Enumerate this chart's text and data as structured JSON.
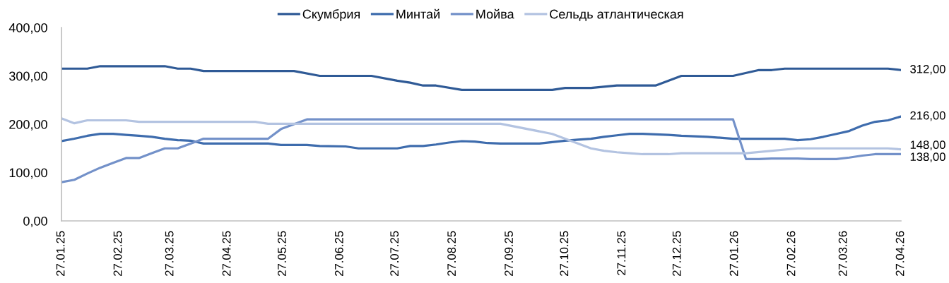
{
  "chart_data": {
    "type": "line",
    "xlim": [
      "2025-01-27",
      "2026-04-27"
    ],
    "xticks": [
      {
        "value": "2025-01-27",
        "label": "27.01.25"
      },
      {
        "value": "2025-02-27",
        "label": "27.02.25"
      },
      {
        "value": "2025-03-27",
        "label": "27.03.25"
      },
      {
        "value": "2025-04-27",
        "label": "27.04.25"
      },
      {
        "value": "2025-05-27",
        "label": "27.05.25"
      },
      {
        "value": "2025-06-27",
        "label": "27.06.25"
      },
      {
        "value": "2025-07-27",
        "label": "27.07.25"
      },
      {
        "value": "2025-08-27",
        "label": "27.08.25"
      },
      {
        "value": "2025-09-27",
        "label": "27.09.25"
      },
      {
        "value": "2025-10-27",
        "label": "27.10.25"
      },
      {
        "value": "2025-11-27",
        "label": "27.11.25"
      },
      {
        "value": "2025-12-27",
        "label": "27.12.25"
      },
      {
        "value": "2026-01-27",
        "label": "27.01.26"
      },
      {
        "value": "2026-02-27",
        "label": "27.02.26"
      },
      {
        "value": "2026-03-27",
        "label": "27.03.26"
      },
      {
        "value": "2026-04-27",
        "label": "27.04.26"
      }
    ],
    "ylim": [
      0,
      400
    ],
    "yticks": [
      {
        "value": 0,
        "label": "0,00"
      },
      {
        "value": 100,
        "label": "100,00"
      },
      {
        "value": 200,
        "label": "200,00"
      },
      {
        "value": 300,
        "label": "300,00"
      },
      {
        "value": 400,
        "label": "400,00"
      }
    ],
    "grid": false,
    "legend": "top",
    "line_style": "solid",
    "series": [
      {
        "name": "Скумбрия",
        "color": "#2f5a96",
        "x": [
          "2025-01-27",
          "2025-02-10",
          "2025-02-17",
          "2025-03-24",
          "2025-03-31",
          "2025-04-07",
          "2025-04-14",
          "2025-06-02",
          "2025-06-16",
          "2025-07-14",
          "2025-07-28",
          "2025-08-04",
          "2025-08-11",
          "2025-08-18",
          "2025-09-01",
          "2025-10-20",
          "2025-10-27",
          "2025-11-10",
          "2025-11-24",
          "2025-12-15",
          "2025-12-29",
          "2026-01-26",
          "2026-02-09",
          "2026-02-16",
          "2026-02-23",
          "2026-04-20",
          "2026-04-27"
        ],
        "values": [
          315,
          315,
          320,
          320,
          315,
          315,
          310,
          310,
          300,
          300,
          290,
          286,
          280,
          280,
          271,
          271,
          275,
          275,
          280,
          280,
          300,
          300,
          312,
          312,
          315,
          315,
          312
        ],
        "value_labels": [
          null,
          null,
          null,
          null,
          null,
          null,
          null,
          null,
          null,
          null,
          null,
          null,
          null,
          null,
          null,
          null,
          null,
          null,
          null,
          null,
          null,
          null,
          null,
          null,
          null,
          null,
          "312,00"
        ]
      },
      {
        "name": "Минтай",
        "color": "#3e6cad",
        "x": [
          "2025-01-27",
          "2025-02-03",
          "2025-02-10",
          "2025-02-17",
          "2025-02-24",
          "2025-03-03",
          "2025-03-10",
          "2025-03-17",
          "2025-03-24",
          "2025-03-31",
          "2025-04-07",
          "2025-04-14",
          "2025-05-19",
          "2025-05-26",
          "2025-06-09",
          "2025-06-16",
          "2025-06-30",
          "2025-07-07",
          "2025-07-28",
          "2025-08-04",
          "2025-08-11",
          "2025-08-18",
          "2025-08-25",
          "2025-09-01",
          "2025-09-08",
          "2025-09-15",
          "2025-09-22",
          "2025-10-13",
          "2025-10-20",
          "2025-10-27",
          "2025-11-03",
          "2025-11-10",
          "2025-11-17",
          "2025-11-24",
          "2025-12-01",
          "2025-12-08",
          "2025-12-15",
          "2025-12-22",
          "2025-12-29",
          "2026-01-12",
          "2026-01-19",
          "2026-01-26",
          "2026-02-23",
          "2026-03-02",
          "2026-03-09",
          "2026-03-16",
          "2026-03-23",
          "2026-03-30",
          "2026-04-06",
          "2026-04-13",
          "2026-04-20",
          "2026-04-27"
        ],
        "values": [
          165,
          170,
          176,
          180,
          180,
          178,
          176,
          174,
          170,
          167,
          166,
          160,
          160,
          157,
          157,
          155,
          154,
          150,
          150,
          155,
          155,
          158,
          162,
          165,
          164,
          161,
          160,
          160,
          163,
          166,
          168,
          170,
          174,
          177,
          180,
          180,
          179,
          178,
          176,
          174,
          172,
          170,
          170,
          167,
          169,
          174,
          180,
          186,
          197,
          205,
          208,
          216
        ],
        "value_labels": [
          null,
          null,
          null,
          null,
          null,
          null,
          null,
          null,
          null,
          null,
          null,
          null,
          null,
          null,
          null,
          null,
          null,
          null,
          null,
          null,
          null,
          null,
          null,
          null,
          null,
          null,
          null,
          null,
          null,
          null,
          null,
          null,
          null,
          null,
          null,
          null,
          null,
          null,
          null,
          null,
          null,
          null,
          null,
          null,
          null,
          null,
          null,
          null,
          null,
          null,
          null,
          "216,00"
        ]
      },
      {
        "name": "Мойва",
        "color": "#7391c9",
        "x": [
          "2025-01-27",
          "2025-02-03",
          "2025-02-10",
          "2025-02-17",
          "2025-02-24",
          "2025-03-03",
          "2025-03-10",
          "2025-03-17",
          "2025-03-24",
          "2025-03-31",
          "2025-04-07",
          "2025-04-14",
          "2025-05-19",
          "2025-05-26",
          "2025-06-02",
          "2025-06-09",
          "2026-01-26",
          "2026-02-02",
          "2026-02-09",
          "2026-02-16",
          "2026-03-02",
          "2026-03-09",
          "2026-03-23",
          "2026-03-30",
          "2026-04-06",
          "2026-04-13",
          "2026-04-27"
        ],
        "values": [
          80,
          85,
          98,
          110,
          120,
          130,
          130,
          140,
          150,
          150,
          160,
          170,
          170,
          190,
          200,
          210,
          210,
          128,
          128,
          129,
          129,
          128,
          128,
          131,
          135,
          138,
          138
        ],
        "value_labels": [
          null,
          null,
          null,
          null,
          null,
          null,
          null,
          null,
          null,
          null,
          null,
          null,
          null,
          null,
          null,
          null,
          null,
          null,
          null,
          null,
          null,
          null,
          null,
          null,
          null,
          null,
          "138,00"
        ]
      },
      {
        "name": "Сельдь атлантическая",
        "color": "#b3c3e1",
        "x": [
          "2025-01-27",
          "2025-02-03",
          "2025-02-10",
          "2025-03-03",
          "2025-03-10",
          "2025-05-12",
          "2025-05-19",
          "2025-09-22",
          "2025-10-20",
          "2025-11-10",
          "2025-11-17",
          "2025-11-24",
          "2025-12-01",
          "2025-12-08",
          "2025-12-22",
          "2025-12-29",
          "2026-02-02",
          "2026-03-02",
          "2026-04-20",
          "2026-04-27"
        ],
        "values": [
          212,
          202,
          208,
          208,
          205,
          205,
          201,
          201,
          180,
          150,
          145,
          142,
          140,
          138,
          138,
          140,
          140,
          150,
          150,
          148
        ],
        "value_labels": [
          null,
          null,
          null,
          null,
          null,
          null,
          null,
          null,
          null,
          null,
          null,
          null,
          null,
          null,
          null,
          null,
          null,
          null,
          null,
          "148,00"
        ]
      }
    ]
  }
}
